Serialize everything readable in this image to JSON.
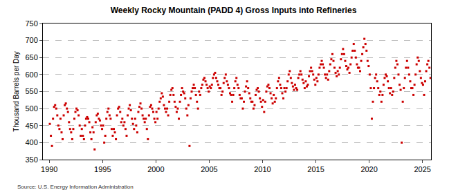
{
  "chart_data": {
    "type": "scatter",
    "title": "Weekly Rocky Mountain (PADD 4) Gross Inputs into Refineries",
    "y_label": "Thousand Barrels per Day",
    "annotation": "Source: U.S. Energy Information Administration",
    "color": "#cc0000",
    "marker": "square",
    "grid": true,
    "xlim": [
      1989.4,
      2025.8
    ],
    "xticks": [
      1990,
      1995,
      2000,
      2005,
      2010,
      2015,
      2020,
      2025
    ],
    "ylim": [
      350,
      750
    ],
    "yticks": [
      350,
      400,
      450,
      500,
      550,
      600,
      650,
      700,
      750
    ],
    "x": [
      1990.05,
      1990.15,
      1990.25,
      1990.35,
      1990.45,
      1990.55,
      1990.65,
      1990.75,
      1990.85,
      1990.95,
      1991.05,
      1991.15,
      1991.25,
      1991.35,
      1991.45,
      1991.55,
      1991.65,
      1991.75,
      1991.85,
      1991.95,
      1992.05,
      1992.15,
      1992.25,
      1992.35,
      1992.45,
      1992.55,
      1992.65,
      1992.75,
      1992.85,
      1992.95,
      1993.05,
      1993.15,
      1993.25,
      1993.35,
      1993.45,
      1993.55,
      1993.65,
      1993.75,
      1993.85,
      1993.95,
      1994.05,
      1994.15,
      1994.25,
      1994.35,
      1994.45,
      1994.55,
      1994.65,
      1994.75,
      1994.85,
      1994.95,
      1995.05,
      1995.15,
      1995.25,
      1995.35,
      1995.45,
      1995.55,
      1995.65,
      1995.75,
      1995.85,
      1995.95,
      1996.05,
      1996.15,
      1996.25,
      1996.35,
      1996.45,
      1996.55,
      1996.65,
      1996.75,
      1996.85,
      1996.95,
      1997.05,
      1997.15,
      1997.25,
      1997.35,
      1997.45,
      1997.55,
      1997.65,
      1997.75,
      1997.85,
      1997.95,
      1998.05,
      1998.15,
      1998.25,
      1998.35,
      1998.45,
      1998.55,
      1998.65,
      1998.75,
      1998.85,
      1998.95,
      1999.05,
      1999.15,
      1999.25,
      1999.35,
      1999.45,
      1999.55,
      1999.65,
      1999.75,
      1999.85,
      1999.95,
      2000.05,
      2000.15,
      2000.25,
      2000.35,
      2000.45,
      2000.55,
      2000.65,
      2000.75,
      2000.85,
      2000.95,
      2001.05,
      2001.15,
      2001.25,
      2001.35,
      2001.45,
      2001.55,
      2001.65,
      2001.75,
      2001.85,
      2001.95,
      2002.05,
      2002.15,
      2002.25,
      2002.35,
      2002.45,
      2002.55,
      2002.65,
      2002.75,
      2002.85,
      2002.95,
      2003.05,
      2003.15,
      2003.25,
      2003.35,
      2003.45,
      2003.55,
      2003.65,
      2003.75,
      2003.85,
      2003.95,
      2004.05,
      2004.15,
      2004.25,
      2004.35,
      2004.45,
      2004.55,
      2004.65,
      2004.75,
      2004.85,
      2004.95,
      2005.05,
      2005.15,
      2005.25,
      2005.35,
      2005.45,
      2005.55,
      2005.65,
      2005.75,
      2005.85,
      2005.95,
      2006.05,
      2006.15,
      2006.25,
      2006.35,
      2006.45,
      2006.55,
      2006.65,
      2006.75,
      2006.85,
      2006.95,
      2007.05,
      2007.15,
      2007.25,
      2007.35,
      2007.45,
      2007.55,
      2007.65,
      2007.75,
      2007.85,
      2007.95,
      2008.05,
      2008.15,
      2008.25,
      2008.35,
      2008.45,
      2008.55,
      2008.65,
      2008.75,
      2008.85,
      2008.95,
      2009.05,
      2009.15,
      2009.25,
      2009.35,
      2009.45,
      2009.55,
      2009.65,
      2009.75,
      2009.85,
      2009.95,
      2010.05,
      2010.15,
      2010.25,
      2010.35,
      2010.45,
      2010.55,
      2010.65,
      2010.75,
      2010.85,
      2010.95,
      2011.05,
      2011.15,
      2011.25,
      2011.35,
      2011.45,
      2011.55,
      2011.65,
      2011.75,
      2011.85,
      2011.95,
      2012.05,
      2012.15,
      2012.25,
      2012.35,
      2012.45,
      2012.55,
      2012.65,
      2012.75,
      2012.85,
      2012.95,
      2013.05,
      2013.15,
      2013.25,
      2013.35,
      2013.45,
      2013.55,
      2013.65,
      2013.75,
      2013.85,
      2013.95,
      2014.05,
      2014.15,
      2014.25,
      2014.35,
      2014.45,
      2014.55,
      2014.65,
      2014.75,
      2014.85,
      2014.95,
      2015.05,
      2015.15,
      2015.25,
      2015.35,
      2015.45,
      2015.55,
      2015.65,
      2015.75,
      2015.85,
      2015.95,
      2016.05,
      2016.15,
      2016.25,
      2016.35,
      2016.45,
      2016.55,
      2016.65,
      2016.75,
      2016.85,
      2016.95,
      2017.05,
      2017.15,
      2017.25,
      2017.35,
      2017.45,
      2017.55,
      2017.65,
      2017.75,
      2017.85,
      2017.95,
      2018.05,
      2018.15,
      2018.25,
      2018.35,
      2018.45,
      2018.55,
      2018.65,
      2018.75,
      2018.85,
      2018.95,
      2019.05,
      2019.15,
      2019.25,
      2019.35,
      2019.45,
      2019.55,
      2019.65,
      2019.75,
      2019.85,
      2019.95,
      2020.05,
      2020.15,
      2020.25,
      2020.35,
      2020.45,
      2020.55,
      2020.65,
      2020.75,
      2020.85,
      2020.95,
      2021.05,
      2021.15,
      2021.25,
      2021.35,
      2021.45,
      2021.55,
      2021.65,
      2021.75,
      2021.85,
      2021.95,
      2022.05,
      2022.15,
      2022.25,
      2022.35,
      2022.45,
      2022.55,
      2022.65,
      2022.75,
      2022.85,
      2022.95,
      2023.05,
      2023.15,
      2023.25,
      2023.35,
      2023.45,
      2023.55,
      2023.65,
      2023.75,
      2023.85,
      2023.95,
      2024.05,
      2024.15,
      2024.25,
      2024.35,
      2024.45,
      2024.55,
      2024.65,
      2024.75,
      2024.85,
      2024.95,
      2025.05,
      2025.15,
      2025.25,
      2025.35,
      2025.45,
      2025.55,
      2025.65,
      2025.75
    ],
    "values": [
      455,
      420,
      390,
      470,
      505,
      510,
      500,
      480,
      450,
      440,
      470,
      430,
      410,
      480,
      510,
      515,
      500,
      490,
      460,
      440,
      430,
      410,
      440,
      470,
      490,
      500,
      495,
      480,
      450,
      420,
      440,
      420,
      410,
      450,
      470,
      475,
      470,
      460,
      430,
      410,
      445,
      430,
      380,
      460,
      480,
      485,
      470,
      465,
      450,
      440,
      450,
      400,
      420,
      470,
      490,
      500,
      480,
      470,
      440,
      420,
      440,
      430,
      410,
      480,
      500,
      505,
      490,
      460,
      470,
      450,
      460,
      440,
      420,
      480,
      500,
      510,
      495,
      470,
      455,
      440,
      470,
      450,
      430,
      490,
      505,
      515,
      500,
      480,
      470,
      460,
      470,
      440,
      410,
      480,
      505,
      510,
      500,
      490,
      470,
      460,
      490,
      470,
      500,
      520,
      530,
      545,
      535,
      510,
      500,
      490,
      500,
      480,
      520,
      540,
      555,
      560,
      540,
      520,
      505,
      490,
      500,
      470,
      520,
      540,
      560,
      550,
      545,
      530,
      500,
      480,
      510,
      390,
      530,
      550,
      560,
      570,
      560,
      540,
      520,
      500,
      550,
      540,
      560,
      570,
      585,
      590,
      580,
      570,
      560,
      550,
      565,
      560,
      570,
      590,
      600,
      605,
      590,
      580,
      570,
      560,
      560,
      540,
      550,
      575,
      590,
      600,
      580,
      570,
      560,
      545,
      540,
      520,
      540,
      560,
      580,
      590,
      570,
      560,
      540,
      530,
      530,
      500,
      520,
      550,
      565,
      580,
      560,
      545,
      530,
      520,
      520,
      500,
      510,
      540,
      555,
      560,
      550,
      530,
      520,
      505,
      525,
      490,
      520,
      550,
      565,
      570,
      560,
      545,
      530,
      515,
      540,
      520,
      530,
      560,
      580,
      590,
      570,
      560,
      545,
      530,
      560,
      550,
      560,
      580,
      600,
      610,
      590,
      575,
      565,
      555,
      570,
      560,
      555,
      590,
      600,
      610,
      600,
      585,
      575,
      560,
      580,
      565,
      570,
      595,
      610,
      620,
      610,
      600,
      585,
      570,
      590,
      580,
      600,
      620,
      630,
      640,
      630,
      620,
      600,
      590,
      600,
      585,
      610,
      630,
      645,
      660,
      640,
      620,
      605,
      595,
      610,
      600,
      620,
      645,
      660,
      675,
      660,
      640,
      625,
      615,
      620,
      605,
      630,
      650,
      670,
      690,
      670,
      650,
      630,
      620,
      620,
      610,
      640,
      660,
      680,
      705,
      690,
      670,
      640,
      625,
      600,
      560,
      470,
      520,
      560,
      590,
      600,
      580,
      560,
      540,
      550,
      520,
      540,
      570,
      590,
      600,
      595,
      580,
      560,
      545,
      560,
      540,
      550,
      590,
      620,
      640,
      630,
      600,
      570,
      555,
      400,
      520,
      560,
      590,
      620,
      640,
      620,
      600,
      580,
      560,
      560,
      540,
      570,
      600,
      630,
      650,
      640,
      610,
      590,
      575,
      570,
      540,
      580,
      610,
      630,
      640,
      620,
      590
    ]
  }
}
